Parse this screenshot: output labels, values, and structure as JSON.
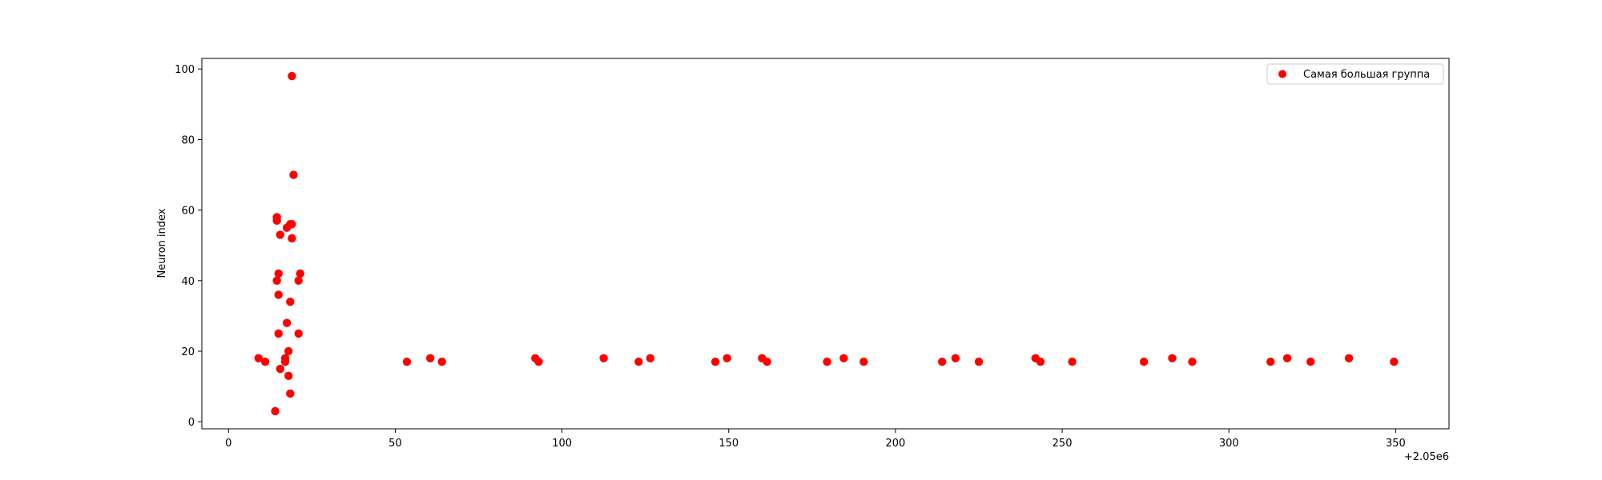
{
  "chart_data": {
    "type": "scatter",
    "xlabel": "",
    "ylabel": "Neuron index",
    "x_offset_label": "+2.05e6",
    "xlim": [
      -8,
      366
    ],
    "ylim": [
      -2,
      103
    ],
    "x_ticks": [
      0,
      50,
      100,
      150,
      200,
      250,
      300,
      350
    ],
    "y_ticks": [
      0,
      20,
      40,
      60,
      80,
      100
    ],
    "grid": false,
    "legend_position": "top-right",
    "series": [
      {
        "name": "Самая большая группа",
        "color": "#ff0000",
        "x": [
          9,
          11,
          14,
          14.5,
          14.5,
          14.5,
          15,
          15,
          15,
          15.5,
          15.5,
          17,
          17,
          17.5,
          17.5,
          18,
          18,
          18.5,
          18.5,
          18.5,
          19,
          19,
          19,
          19.5,
          21,
          21,
          21.5,
          53.5,
          60.5,
          64,
          92,
          93,
          112.5,
          123,
          126.5,
          146,
          149.5,
          160,
          161.5,
          179.5,
          184.5,
          190.5,
          214,
          218,
          225,
          242,
          243.5,
          253,
          274.5,
          283,
          289,
          312.5,
          317.5,
          324.5,
          336,
          349.5
        ],
        "y": [
          18,
          17,
          3,
          57,
          58,
          40,
          42,
          36,
          25,
          53,
          15,
          17,
          18,
          55,
          28,
          20,
          13,
          34,
          8,
          56,
          52,
          98,
          56,
          70,
          25,
          40,
          42,
          17,
          18,
          17,
          18,
          17,
          18,
          17,
          18,
          17,
          18,
          18,
          17,
          17,
          18,
          17,
          17,
          18,
          17,
          18,
          17,
          17,
          17,
          18,
          17,
          17,
          18,
          17,
          18,
          17
        ]
      }
    ]
  }
}
